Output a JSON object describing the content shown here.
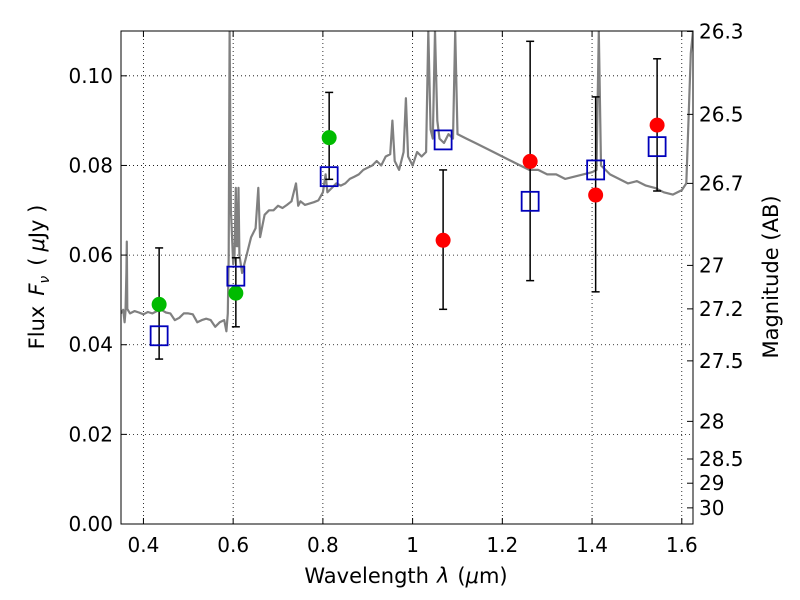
{
  "chart_data": {
    "type": "scatter",
    "xlabel_prefix": "Wavelength",
    "xlabel_symbol": "λ",
    "xlabel_unit_open": "(",
    "xlabel_unit_mu": "μ",
    "xlabel_unit_rest": "m)",
    "ylabel_prefix": "Flux",
    "ylabel_symbol": "F",
    "ylabel_sub": "ν",
    "ylabel_unit_open": "(",
    "ylabel_unit_mu": "μ",
    "ylabel_unit_rest": "Jy )",
    "y2label": "Magnitude (AB)",
    "xlim": [
      0.35,
      1.625
    ],
    "ylim": [
      0.0,
      0.11
    ],
    "grid": true,
    "x_ticks": [
      0.4,
      0.6,
      0.8,
      1.0,
      1.2,
      1.4,
      1.6
    ],
    "x_tick_labels": [
      "0.4",
      "0.6",
      "0.8",
      "1",
      "1.2",
      "1.4",
      "1.6"
    ],
    "y_ticks": [
      0.0,
      0.02,
      0.04,
      0.06,
      0.08,
      0.1
    ],
    "y_tick_labels": [
      "0.00",
      "0.02",
      "0.04",
      "0.06",
      "0.08",
      "0.10"
    ],
    "y2_ticks": [
      {
        "label": "26.3",
        "flux": 0.1099
      },
      {
        "label": "26.5",
        "flux": 0.0914
      },
      {
        "label": "26.7",
        "flux": 0.076
      },
      {
        "label": "27",
        "flux": 0.0577
      },
      {
        "label": "27.2",
        "flux": 0.048
      },
      {
        "label": "27.5",
        "flux": 0.0364
      },
      {
        "label": "28",
        "flux": 0.0229
      },
      {
        "label": "28.5",
        "flux": 0.0145
      },
      {
        "label": "29",
        "flux": 0.0091
      },
      {
        "label": "30",
        "flux": 0.0036
      }
    ],
    "series": [
      {
        "name": "green measurements",
        "color": "#00bb00",
        "marker": "circle",
        "points": [
          {
            "x": 0.435,
            "y": 0.049
          },
          {
            "x": 0.606,
            "y": 0.0515
          },
          {
            "x": 0.814,
            "y": 0.0862
          }
        ]
      },
      {
        "name": "red measurements",
        "color": "#ff0000",
        "marker": "circle",
        "points": [
          {
            "x": 1.068,
            "y": 0.0633
          },
          {
            "x": 1.262,
            "y": 0.0809
          },
          {
            "x": 1.408,
            "y": 0.0734
          },
          {
            "x": 1.545,
            "y": 0.089
          }
        ]
      },
      {
        "name": "model photometry",
        "color": "#0000bb",
        "marker": "square",
        "points": [
          {
            "x": 0.435,
            "y": 0.042
          },
          {
            "x": 0.606,
            "y": 0.0553
          },
          {
            "x": 0.814,
            "y": 0.0775
          },
          {
            "x": 1.068,
            "y": 0.0857
          },
          {
            "x": 1.262,
            "y": 0.072
          },
          {
            "x": 1.408,
            "y": 0.079
          },
          {
            "x": 1.545,
            "y": 0.0842
          }
        ]
      }
    ],
    "error_bars": [
      {
        "x": 0.435,
        "low": 0.0368,
        "high": 0.0616
      },
      {
        "x": 0.606,
        "low": 0.044,
        "high": 0.0594
      },
      {
        "x": 0.814,
        "low": 0.0769,
        "high": 0.0963
      },
      {
        "x": 1.068,
        "low": 0.0479,
        "high": 0.079
      },
      {
        "x": 1.262,
        "low": 0.0543,
        "high": 0.1077
      },
      {
        "x": 1.408,
        "low": 0.0518,
        "high": 0.0953
      },
      {
        "x": 1.545,
        "low": 0.0743,
        "high": 0.1038
      }
    ],
    "spectrum": {
      "color": "#808080",
      "points": [
        [
          0.35,
          0.047
        ],
        [
          0.355,
          0.0478
        ],
        [
          0.358,
          0.045
        ],
        [
          0.36,
          0.0475
        ],
        [
          0.362,
          0.056
        ],
        [
          0.363,
          0.063
        ],
        [
          0.364,
          0.048
        ],
        [
          0.37,
          0.047
        ],
        [
          0.38,
          0.0475
        ],
        [
          0.39,
          0.0472
        ],
        [
          0.4,
          0.0468
        ],
        [
          0.41,
          0.0473
        ],
        [
          0.42,
          0.047
        ],
        [
          0.43,
          0.0475
        ],
        [
          0.44,
          0.0478
        ],
        [
          0.45,
          0.0472
        ],
        [
          0.46,
          0.047
        ],
        [
          0.47,
          0.0455
        ],
        [
          0.48,
          0.046
        ],
        [
          0.49,
          0.047
        ],
        [
          0.5,
          0.047
        ],
        [
          0.51,
          0.0468
        ],
        [
          0.52,
          0.045
        ],
        [
          0.53,
          0.0455
        ],
        [
          0.54,
          0.0458
        ],
        [
          0.55,
          0.0455
        ],
        [
          0.56,
          0.044
        ],
        [
          0.57,
          0.045
        ],
        [
          0.58,
          0.0455
        ],
        [
          0.585,
          0.043
        ],
        [
          0.588,
          0.047
        ],
        [
          0.59,
          0.06
        ],
        [
          0.592,
          0.11
        ],
        [
          0.595,
          0.07
        ],
        [
          0.6,
          0.058
        ],
        [
          0.603,
          0.06
        ],
        [
          0.606,
          0.075
        ],
        [
          0.608,
          0.062
        ],
        [
          0.61,
          0.062
        ],
        [
          0.612,
          0.075
        ],
        [
          0.614,
          0.06
        ],
        [
          0.62,
          0.056
        ],
        [
          0.63,
          0.06
        ],
        [
          0.64,
          0.064
        ],
        [
          0.65,
          0.066
        ],
        [
          0.656,
          0.075
        ],
        [
          0.66,
          0.064
        ],
        [
          0.67,
          0.069
        ],
        [
          0.68,
          0.07
        ],
        [
          0.69,
          0.07
        ],
        [
          0.7,
          0.071
        ],
        [
          0.71,
          0.0705
        ],
        [
          0.72,
          0.0712
        ],
        [
          0.73,
          0.072
        ],
        [
          0.74,
          0.076
        ],
        [
          0.745,
          0.071
        ],
        [
          0.75,
          0.072
        ],
        [
          0.76,
          0.0712
        ],
        [
          0.77,
          0.0715
        ],
        [
          0.78,
          0.0718
        ],
        [
          0.79,
          0.0722
        ],
        [
          0.8,
          0.074
        ],
        [
          0.806,
          0.078
        ],
        [
          0.81,
          0.074
        ],
        [
          0.82,
          0.075
        ],
        [
          0.83,
          0.076
        ],
        [
          0.84,
          0.0755
        ],
        [
          0.85,
          0.076
        ],
        [
          0.86,
          0.077
        ],
        [
          0.87,
          0.0775
        ],
        [
          0.88,
          0.078
        ],
        [
          0.89,
          0.079
        ],
        [
          0.9,
          0.0795
        ],
        [
          0.91,
          0.08
        ],
        [
          0.92,
          0.081
        ],
        [
          0.93,
          0.08
        ],
        [
          0.94,
          0.082
        ],
        [
          0.95,
          0.0825
        ],
        [
          0.955,
          0.09
        ],
        [
          0.96,
          0.081
        ],
        [
          0.97,
          0.079
        ],
        [
          0.98,
          0.083
        ],
        [
          0.985,
          0.095
        ],
        [
          0.99,
          0.082
        ],
        [
          1.0,
          0.08
        ],
        [
          1.01,
          0.083
        ],
        [
          1.02,
          0.082
        ],
        [
          1.03,
          0.083
        ],
        [
          1.035,
          0.11
        ],
        [
          1.04,
          0.088
        ],
        [
          1.045,
          0.086
        ],
        [
          1.05,
          0.11
        ],
        [
          1.055,
          0.09
        ],
        [
          1.06,
          0.086
        ],
        [
          1.07,
          0.085
        ],
        [
          1.08,
          0.087
        ],
        [
          1.09,
          0.086
        ],
        [
          1.095,
          0.11
        ],
        [
          1.1,
          0.087
        ],
        [
          1.12,
          0.086
        ],
        [
          1.14,
          0.085
        ],
        [
          1.16,
          0.084
        ],
        [
          1.18,
          0.083
        ],
        [
          1.2,
          0.082
        ],
        [
          1.22,
          0.081
        ],
        [
          1.24,
          0.08
        ],
        [
          1.26,
          0.079
        ],
        [
          1.28,
          0.079
        ],
        [
          1.3,
          0.078
        ],
        [
          1.32,
          0.078
        ],
        [
          1.34,
          0.077
        ],
        [
          1.36,
          0.0775
        ],
        [
          1.38,
          0.078
        ],
        [
          1.4,
          0.0785
        ],
        [
          1.41,
          0.079
        ],
        [
          1.415,
          0.11
        ],
        [
          1.42,
          0.08
        ],
        [
          1.43,
          0.079
        ],
        [
          1.44,
          0.078
        ],
        [
          1.46,
          0.077
        ],
        [
          1.48,
          0.076
        ],
        [
          1.5,
          0.0765
        ],
        [
          1.52,
          0.0755
        ],
        [
          1.54,
          0.075
        ],
        [
          1.56,
          0.074
        ],
        [
          1.58,
          0.0735
        ],
        [
          1.6,
          0.0745
        ],
        [
          1.61,
          0.076
        ],
        [
          1.615,
          0.09
        ],
        [
          1.62,
          0.105
        ],
        [
          1.625,
          0.11
        ]
      ]
    }
  }
}
